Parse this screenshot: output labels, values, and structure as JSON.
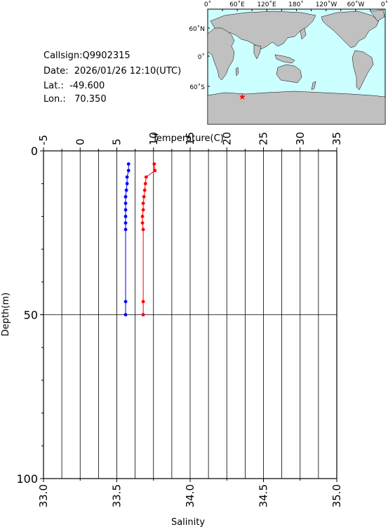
{
  "station": {
    "callsign": "Callsign:Q9902315",
    "date": "Date:  2026/01/26 12:10(UTC)",
    "lat": "Lat.:  -49.600",
    "lon": "Lon.:   70.350"
  },
  "map": {
    "top_labels": [
      "0˚",
      "60˚E",
      "120˚E",
      "180˚",
      "120˚W",
      "60˚W",
      "0˚"
    ],
    "left_labels": [
      "60˚N",
      "0˚",
      "60˚S"
    ],
    "ocean_color": "#ccffff",
    "land_color": "#c0c0c0",
    "marker": {
      "lon": 70.35,
      "lat": -49.6,
      "color": "#ff0000"
    }
  },
  "chart_data": {
    "type": "line",
    "temperature_axis": {
      "label": "Temperature(C)",
      "ticks": [
        "-5",
        "0",
        "5",
        "10",
        "15",
        "20",
        "25",
        "30",
        "35"
      ],
      "range": [
        -5,
        35
      ],
      "color": "#ff0000"
    },
    "salinity_axis": {
      "label": "Salinity",
      "ticks": [
        "33.0",
        "33.5",
        "34.0",
        "34.5",
        "35.0"
      ],
      "range": [
        33.0,
        35.0
      ],
      "color": "#0000ff"
    },
    "depth_axis": {
      "label": "Depth(m)",
      "ticks": [
        "0",
        "50",
        "100"
      ],
      "range": [
        0,
        100
      ]
    },
    "series": [
      {
        "name": "Temperature",
        "color": "#ff0000",
        "depth": [
          4,
          6,
          8,
          10,
          12,
          14,
          16,
          18,
          20,
          22,
          24,
          46,
          50
        ],
        "values": [
          10.1,
          10.2,
          9.0,
          8.9,
          8.8,
          8.7,
          8.6,
          8.6,
          8.5,
          8.5,
          8.6,
          8.6,
          8.6
        ]
      },
      {
        "name": "Salinity",
        "color": "#0000ff",
        "depth": [
          4,
          6,
          8,
          10,
          12,
          14,
          16,
          18,
          20,
          22,
          24,
          46,
          50
        ],
        "values": [
          33.58,
          33.58,
          33.57,
          33.57,
          33.565,
          33.56,
          33.56,
          33.56,
          33.56,
          33.56,
          33.56,
          33.56,
          33.56
        ]
      }
    ],
    "grid": true
  }
}
